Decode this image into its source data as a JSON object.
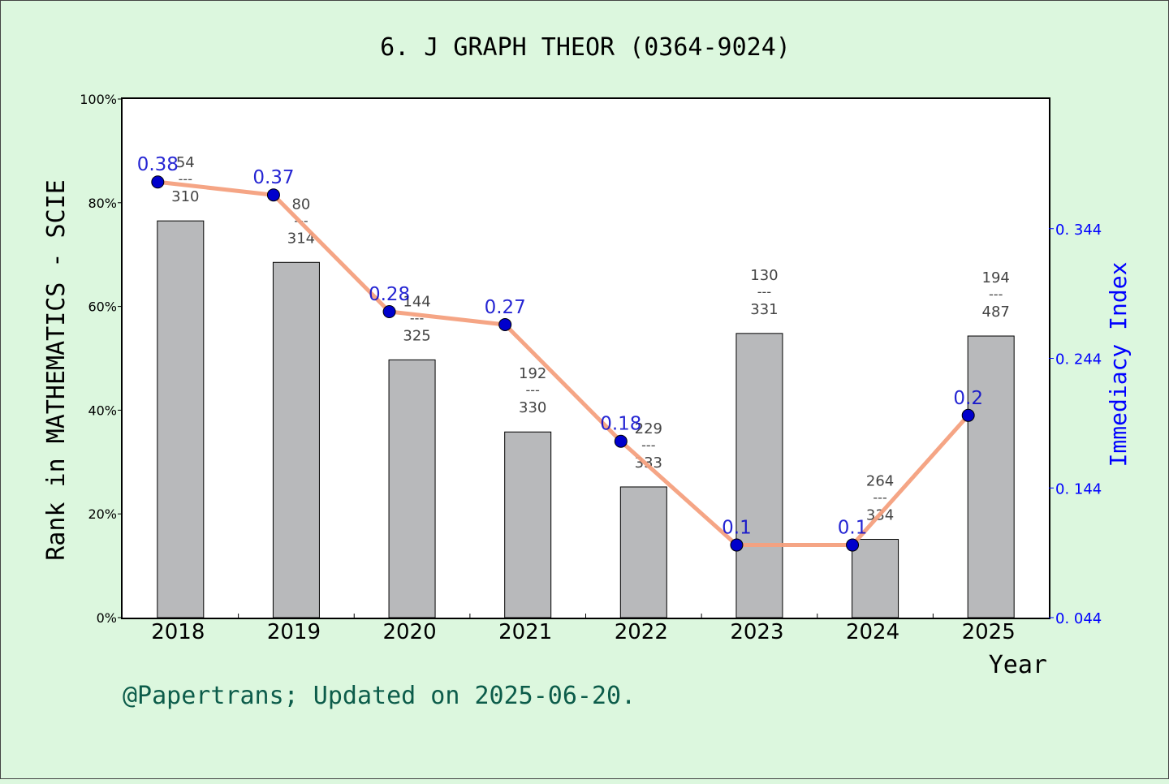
{
  "chart_data": {
    "type": "bar+line",
    "title": "6. J GRAPH THEOR (0364-9024)",
    "xlabel": "Year",
    "ylabel_left": "Rank in MATHEMATICS - SCIE",
    "ylabel_right": "Immediacy Index",
    "categories": [
      "2018",
      "2019",
      "2020",
      "2021",
      "2022",
      "2023",
      "2024",
      "2025"
    ],
    "left_axis": {
      "ylim": [
        0,
        100
      ],
      "ticks": [
        "0%",
        "20%",
        "40%",
        "60%",
        "80%",
        "100%"
      ]
    },
    "right_axis": {
      "ylim": [
        0.044,
        0.444
      ],
      "ticks": [
        "0.044",
        "0.144",
        "0.244",
        "0.344"
      ]
    },
    "bars": {
      "values_pct": [
        76.5,
        68.5,
        49.7,
        35.8,
        25.2,
        54.8,
        15.1,
        54.3
      ],
      "rank": [
        "54",
        "80",
        "144",
        "192",
        "229",
        "130",
        "264",
        "194"
      ],
      "total": [
        "310",
        "314",
        "325",
        "330",
        "333",
        "331",
        "334",
        "487"
      ],
      "separator": "---"
    },
    "line": {
      "values": [
        0.38,
        0.37,
        0.28,
        0.27,
        0.18,
        0.1,
        0.1,
        0.2
      ],
      "labels": [
        "0.38",
        "0.37",
        "0.28",
        "0.27",
        "0.18",
        "0.1",
        "0.1",
        "0.2"
      ]
    },
    "colors": {
      "background": "#dcf7de",
      "plot_bg": "#ffffff",
      "bar": "#b8b9bb",
      "line": "#f4a07e",
      "marker": "#0000cc",
      "point_label": "#0000cc",
      "right_axis": "#0000ff",
      "footer": "#0c5c4a"
    }
  },
  "footer": "@Papertrans; Updated on 2025-06-20."
}
